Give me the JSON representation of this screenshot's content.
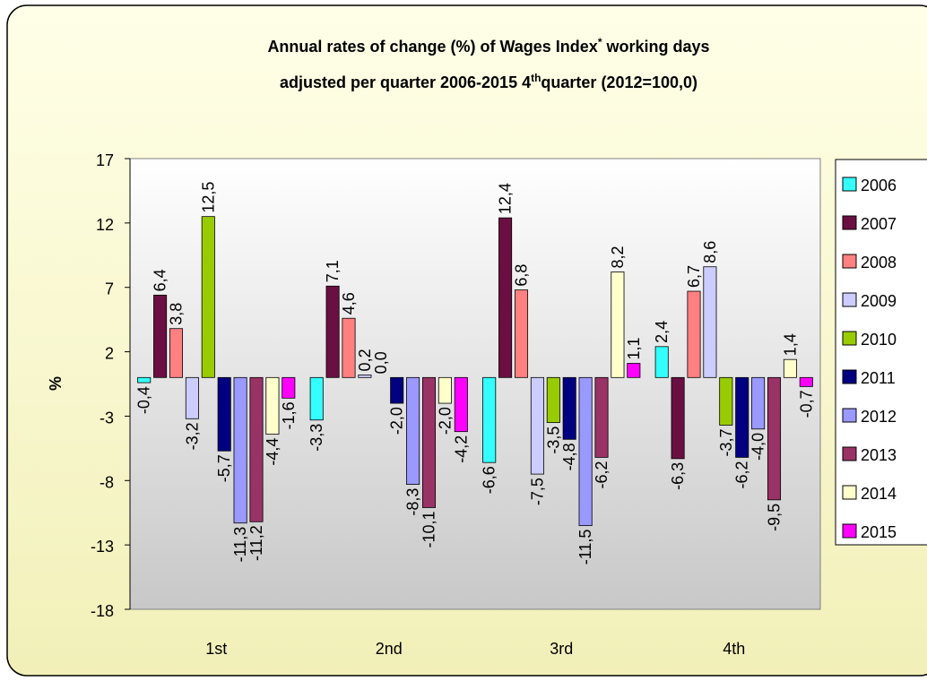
{
  "chart_data": {
    "type": "bar",
    "title": [
      [
        "Annual rates of change (%) of Wages Index",
        "*",
        " working days"
      ],
      [
        "adjusted per quarter 2006-2015 4",
        "th",
        "quarter (2012=100,0)"
      ]
    ],
    "ylabel": "%",
    "categories": [
      "1st",
      "2nd",
      "3rd",
      "4th"
    ],
    "ylim": [
      -18,
      17
    ],
    "yticks": [
      17,
      12,
      7,
      2,
      -3,
      -8,
      -13,
      -18
    ],
    "series": [
      {
        "name": "2006",
        "color": "#33ffff",
        "values": [
          -0.4,
          -3.3,
          -6.6,
          2.4
        ],
        "value_labels": [
          "-0,4",
          "-3,3",
          "-6,6",
          "2,4"
        ]
      },
      {
        "name": "2007",
        "color": "#6b0f42",
        "values": [
          6.4,
          7.1,
          12.4,
          -6.3
        ],
        "value_labels": [
          "6,4",
          "7,1",
          "12,4",
          "-6,3"
        ]
      },
      {
        "name": "2008",
        "color": "#ff8080",
        "values": [
          3.8,
          4.6,
          6.8,
          6.7
        ],
        "value_labels": [
          "3,8",
          "4,6",
          "6,8",
          "6,7"
        ]
      },
      {
        "name": "2009",
        "color": "#ccccff",
        "values": [
          -3.2,
          0.2,
          -7.5,
          8.6
        ],
        "value_labels": [
          "-3,2",
          "0,2",
          "-7,5",
          "8,6"
        ]
      },
      {
        "name": "2010",
        "color": "#99cc00",
        "values": [
          12.5,
          0.0,
          -3.5,
          -3.7
        ],
        "value_labels": [
          "12,5",
          "0,0",
          "-3,5",
          "-3,7"
        ]
      },
      {
        "name": "2011",
        "color": "#000080",
        "values": [
          -5.7,
          -2.0,
          -4.8,
          -6.2
        ],
        "value_labels": [
          "-5,7",
          "-2,0",
          "-4,8",
          "-6,2"
        ]
      },
      {
        "name": "2012",
        "color": "#9999ff",
        "values": [
          -11.3,
          -8.3,
          -11.5,
          -4.0
        ],
        "value_labels": [
          "-11,3",
          "-8,3",
          "-11,5",
          "-4,0"
        ]
      },
      {
        "name": "2013",
        "color": "#993366",
        "values": [
          -11.2,
          -10.1,
          -6.2,
          -9.5
        ],
        "value_labels": [
          "-11,2",
          "-10,1",
          "-6,2",
          "-9,5"
        ]
      },
      {
        "name": "2014",
        "color": "#ffffcc",
        "values": [
          -4.4,
          -2.0,
          8.2,
          1.4
        ],
        "value_labels": [
          "-4,4",
          "-2,0",
          "8,2",
          "1,4"
        ]
      },
      {
        "name": "2015",
        "color": "#ff00ff",
        "values": [
          -1.6,
          -4.2,
          1.1,
          -0.7
        ],
        "value_labels": [
          "-1,6",
          "-4,2",
          "1,1",
          "-0,7"
        ]
      }
    ]
  }
}
